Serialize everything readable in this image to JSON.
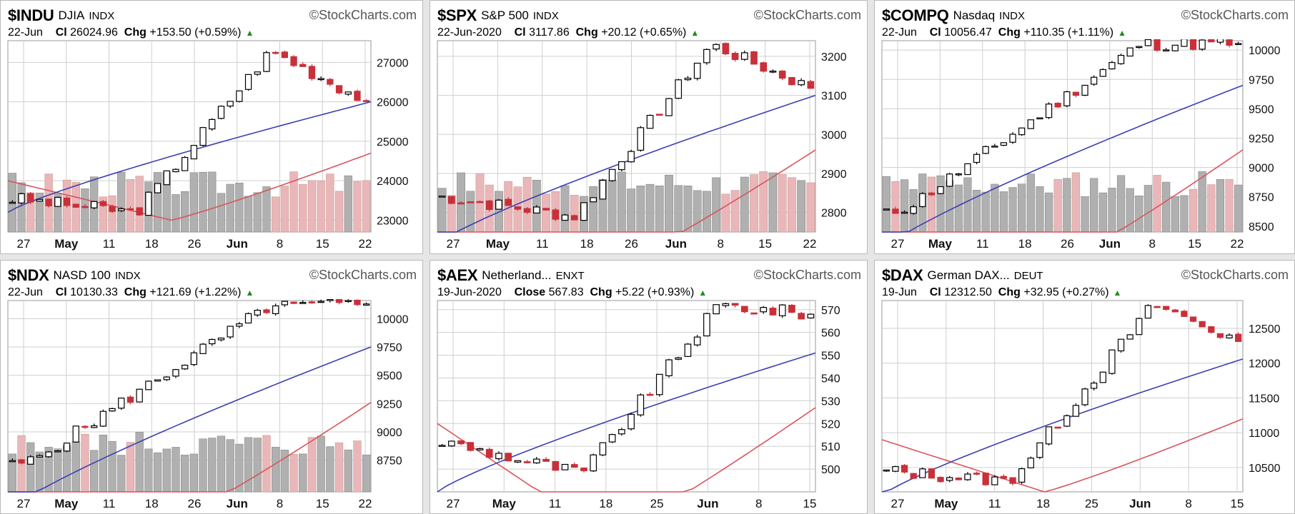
{
  "watermark": "©StockCharts.com",
  "colors": {
    "up": "#ffffff",
    "down": "#c8303a",
    "black": "#000000",
    "ma_short": "#3b3fb3",
    "ma_long": "#d9545c",
    "vol_gray": "#b0b0b0",
    "vol_red": "#e9b7ba",
    "grid": "#cfcfcf"
  },
  "panels": [
    {
      "id": "indu",
      "symbol": "$INDU",
      "name": "DJIA",
      "exchange": "INDX",
      "date": "22-Jun",
      "close_label": "Cl",
      "close": "26024.96",
      "chg_label": "Chg",
      "chg": "+153.50 (+0.59%)",
      "chart_data": {
        "type": "candlestick",
        "title": "$INDU DJIA",
        "yticks": [
          23000,
          24000,
          25000,
          26000,
          27000
        ],
        "ylim": [
          22700,
          27550
        ],
        "xlabels": [
          {
            "t": "27",
            "b": false
          },
          {
            "t": "May",
            "b": true
          },
          {
            "t": "11",
            "b": false
          },
          {
            "t": "18",
            "b": false
          },
          {
            "t": "26",
            "b": false
          },
          {
            "t": "Jun",
            "b": true
          },
          {
            "t": "8",
            "b": false
          },
          {
            "t": "15",
            "b": false
          },
          {
            "t": "22",
            "b": false
          }
        ],
        "start": 23550,
        "end": 26025,
        "peak": 27300,
        "peakAt": 0.73,
        "dip": 23200,
        "dipAt": 0.35,
        "maS": [
          23200,
          26000
        ],
        "maL": [
          24000,
          23000,
          24700
        ],
        "vol": [
          0.55,
          0.35,
          0.5
        ],
        "seed": 3
      }
    },
    {
      "id": "spx",
      "symbol": "$SPX",
      "name": "S&P 500",
      "exchange": "INDX",
      "date": "22-Jun-2020",
      "close_label": "Cl",
      "close": "3117.86",
      "chg_label": "Chg",
      "chg": "+20.12 (+0.65%)",
      "chart_data": {
        "type": "candlestick",
        "title": "$SPX S&P 500",
        "yticks": [
          2800,
          2900,
          3000,
          3100,
          3200
        ],
        "ylim": [
          2750,
          3240
        ],
        "xlabels": [
          {
            "t": "27",
            "b": false
          },
          {
            "t": "May",
            "b": true
          },
          {
            "t": "11",
            "b": false
          },
          {
            "t": "18",
            "b": false
          },
          {
            "t": "26",
            "b": false
          },
          {
            "t": "Jun",
            "b": true
          },
          {
            "t": "8",
            "b": false
          },
          {
            "t": "15",
            "b": false
          },
          {
            "t": "22",
            "b": false
          }
        ],
        "start": 2840,
        "end": 3118,
        "peak": 3230,
        "peakAt": 0.73,
        "dip": 2790,
        "dipAt": 0.36,
        "maS": [
          2720,
          3100
        ],
        "maL": [
          2620,
          2650,
          2960
        ],
        "vol": [
          0.55,
          0.35,
          0.5
        ],
        "seed": 7
      }
    },
    {
      "id": "compq",
      "symbol": "$COMPQ",
      "name": "Nasdaq",
      "exchange": "INDX",
      "date": "22-Jun",
      "close_label": "Cl",
      "close": "10056.47",
      "chg_label": "Chg",
      "chg": "+110.35 (+1.11%)",
      "chart_data": {
        "type": "candlestick",
        "title": "$COMPQ Nasdaq",
        "yticks": [
          8500,
          8750,
          9000,
          9250,
          9500,
          9750,
          10000
        ],
        "ylim": [
          8450,
          10080
        ],
        "xlabels": [
          {
            "t": "27",
            "b": false
          },
          {
            "t": "May",
            "b": true
          },
          {
            "t": "11",
            "b": false
          },
          {
            "t": "18",
            "b": false
          },
          {
            "t": "26",
            "b": false
          },
          {
            "t": "Jun",
            "b": true
          },
          {
            "t": "8",
            "b": false
          },
          {
            "t": "15",
            "b": false
          },
          {
            "t": "22",
            "b": false
          }
        ],
        "start": 8600,
        "end": 10056,
        "peak": 10050,
        "peakAt": 0.72,
        "dip": 8700,
        "dipAt": 0.08,
        "maS": [
          8300,
          9700
        ],
        "maL": [
          7800,
          8100,
          9150
        ],
        "vol": [
          0.45,
          0.4,
          0.45
        ],
        "seed": 11
      }
    },
    {
      "id": "ndx",
      "symbol": "$NDX",
      "name": "NASD 100",
      "exchange": "INDX",
      "date": "22-Jun",
      "close_label": "Cl",
      "close": "10130.33",
      "chg_label": "Chg",
      "chg": "+121.69 (+1.22%)",
      "chart_data": {
        "type": "candlestick",
        "title": "$NDX NASD 100",
        "yticks": [
          8750,
          9000,
          9250,
          9500,
          9750,
          10000
        ],
        "ylim": [
          8470,
          10160
        ],
        "xlabels": [
          {
            "t": "27",
            "b": false
          },
          {
            "t": "May",
            "b": true
          },
          {
            "t": "11",
            "b": false
          },
          {
            "t": "18",
            "b": false
          },
          {
            "t": "26",
            "b": false
          },
          {
            "t": "Jun",
            "b": true
          },
          {
            "t": "8",
            "b": false
          },
          {
            "t": "15",
            "b": false
          },
          {
            "t": "22",
            "b": false
          }
        ],
        "start": 8700,
        "end": 10130,
        "peak": 10100,
        "peakAt": 0.72,
        "dip": 8750,
        "dipAt": 0.06,
        "maS": [
          8300,
          9750
        ],
        "maL": [
          7900,
          8200,
          9260
        ],
        "vol": [
          0.5,
          0.45,
          0.45
        ],
        "seed": 5
      }
    },
    {
      "id": "aex",
      "symbol": "$AEX",
      "name": "Netherland...",
      "exchange": "ENXT",
      "date": "19-Jun-2020",
      "close_label": "Close",
      "close": "567.83",
      "chg_label": "Chg",
      "chg": "+5.22 (+0.93%)",
      "chart_data": {
        "type": "candlestick",
        "title": "$AEX Netherland...",
        "yticks": [
          500,
          510,
          520,
          530,
          540,
          550,
          560,
          570
        ],
        "ylim": [
          490,
          574
        ],
        "xlabels": [
          {
            "t": "27",
            "b": false
          },
          {
            "t": "May",
            "b": true
          },
          {
            "t": "11",
            "b": false
          },
          {
            "t": "18",
            "b": false
          },
          {
            "t": "25",
            "b": false
          },
          {
            "t": "Jun",
            "b": true
          },
          {
            "t": "8",
            "b": false
          },
          {
            "t": "15",
            "b": false
          }
        ],
        "start": 512,
        "end": 568,
        "peak": 572,
        "peakAt": 0.75,
        "dip": 498,
        "dipAt": 0.38,
        "maS": [
          490,
          551
        ],
        "maL": [
          520,
          470,
          527
        ],
        "vol": [
          0,
          0,
          0
        ],
        "seed": 9
      }
    },
    {
      "id": "dax",
      "symbol": "$DAX",
      "name": "German DAX...",
      "exchange": "DEUT",
      "date": "19-Jun",
      "close_label": "Cl",
      "close": "12312.50",
      "chg_label": "Chg",
      "chg": "+32.95 (+0.27%)",
      "chart_data": {
        "type": "candlestick",
        "title": "$DAX German DAX...",
        "yticks": [
          10500,
          11000,
          11500,
          12000,
          12500
        ],
        "ylim": [
          10150,
          12900
        ],
        "xlabels": [
          {
            "t": "27",
            "b": false
          },
          {
            "t": "May",
            "b": true
          },
          {
            "t": "11",
            "b": false
          },
          {
            "t": "18",
            "b": false
          },
          {
            "t": "25",
            "b": false
          },
          {
            "t": "Jun",
            "b": true
          },
          {
            "t": "8",
            "b": false
          },
          {
            "t": "15",
            "b": false
          }
        ],
        "start": 10450,
        "end": 12312,
        "peak": 12850,
        "peakAt": 0.76,
        "dip": 10300,
        "dipAt": 0.35,
        "maS": [
          10100,
          12060
        ],
        "maL": [
          10900,
          10150,
          11200
        ],
        "vol": [
          0,
          0,
          0
        ],
        "seed": 13
      }
    }
  ]
}
